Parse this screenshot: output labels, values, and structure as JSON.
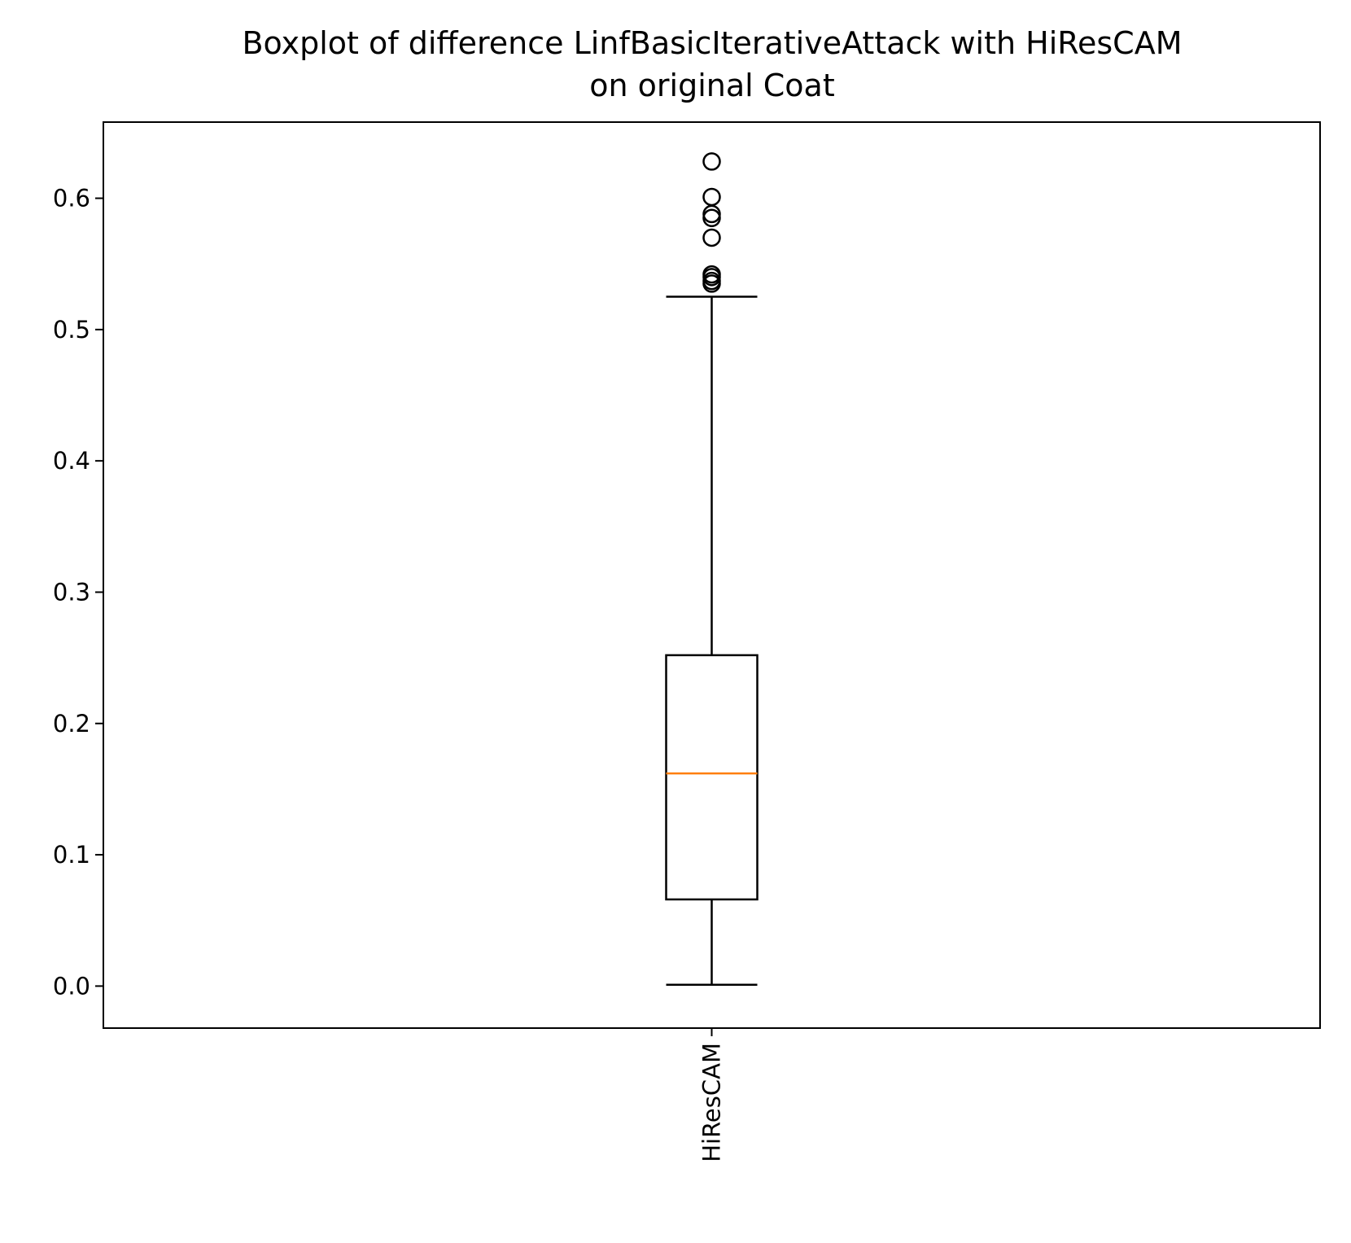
{
  "chart_data": {
    "type": "box",
    "title_lines": [
      "Boxplot of difference LinfBasicIterativeAttack with HiResCAM",
      "on original Coat"
    ],
    "xlabel": "",
    "ylabel": "",
    "categories": [
      "HiResCAM"
    ],
    "boxes": [
      {
        "category": "HiResCAM",
        "whisker_low": 0.001,
        "q1": 0.066,
        "median": 0.162,
        "q3": 0.252,
        "whisker_high": 0.525,
        "outliers": [
          0.628,
          0.601,
          0.588,
          0.585,
          0.57,
          0.542,
          0.54,
          0.537,
          0.535
        ]
      }
    ],
    "ylim": [
      -0.032,
      0.658
    ],
    "yticks": [
      0.0,
      0.1,
      0.2,
      0.3,
      0.4,
      0.5,
      0.6
    ],
    "ytick_labels": [
      "0.0",
      "0.1",
      "0.2",
      "0.3",
      "0.4",
      "0.5",
      "0.6"
    ],
    "grid": false,
    "colors": {
      "box": "#000000",
      "median": "#ff7f0e",
      "outlier": "#000000"
    }
  }
}
